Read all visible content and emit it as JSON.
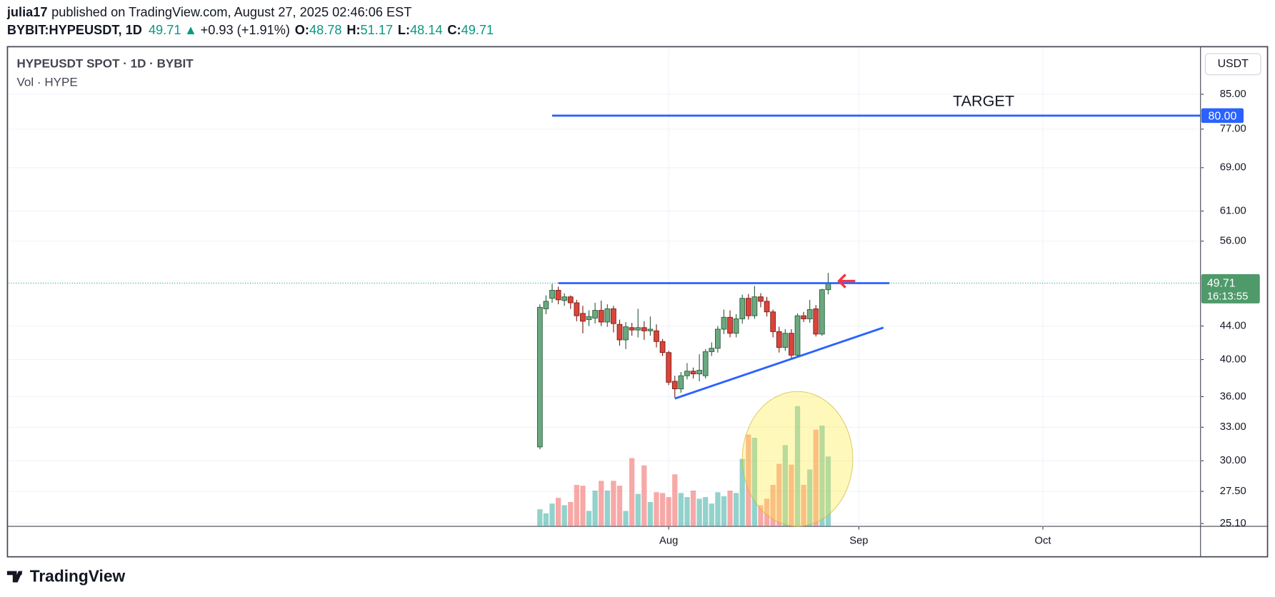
{
  "header": {
    "author": "julia17",
    "published": "published on TradingView.com, August 27, 2025 02:46:06 EST",
    "symbol": "BYBIT:HYPEUSDT, 1D",
    "change_arrow": "▲",
    "change": "+0.93 (+1.91%)",
    "o_label": "O:",
    "h_label": "H:",
    "l_label": "L:",
    "c_label": "C:"
  },
  "footer": {
    "brand": "TradingView"
  },
  "chart_data": {
    "type": "candlestick",
    "title": "HYPEUSDT SPOT · 1D · BYBIT",
    "volume_label": "Vol · HYPE",
    "currency": "USDT",
    "countdown": "16:13:55",
    "log_scale": true,
    "grid": true,
    "up_color": "#6aa97f",
    "down_color": "#d9453b",
    "open": [
      31.2,
      46.2,
      47.6,
      48.7,
      47.3,
      47.8,
      47.0,
      45.6,
      44.8,
      45.0,
      46.0,
      44.5,
      46.2,
      44.2,
      42.3,
      43.8,
      43.5,
      43.8,
      43.4,
      43.4,
      42.1,
      40.8,
      37.6,
      36.8,
      38.2,
      38.7,
      38.4,
      38.2,
      40.9,
      41.3,
      43.6,
      45.1,
      43.1,
      44.9,
      47.6,
      45.3,
      47.8,
      47.2,
      45.8,
      43.3,
      41.4,
      43.1,
      40.5,
      45.3,
      44.9,
      46.2,
      43.0,
      48.78
    ],
    "high": [
      46.8,
      48.0,
      49.6,
      49.2,
      48.3,
      48.0,
      47.4,
      46.6,
      46.0,
      47.0,
      47.3,
      46.8,
      46.6,
      44.8,
      44.5,
      44.4,
      46.2,
      44.6,
      45.2,
      44.2,
      42.4,
      41.0,
      38.2,
      38.6,
      39.6,
      39.1,
      40.6,
      41.2,
      42.0,
      44.0,
      46.1,
      46.0,
      45.5,
      48.1,
      48.2,
      49.3,
      48.3,
      47.8,
      46.1,
      43.9,
      43.6,
      43.6,
      45.6,
      45.8,
      47.4,
      46.7,
      48.9,
      51.17
    ],
    "low": [
      31.0,
      45.5,
      47.0,
      46.8,
      46.6,
      46.2,
      44.6,
      43.1,
      44.0,
      44.3,
      44.0,
      43.9,
      43.2,
      41.6,
      41.2,
      42.8,
      42.6,
      42.3,
      42.8,
      41.4,
      40.4,
      37.2,
      35.9,
      36.4,
      37.8,
      37.9,
      37.6,
      37.9,
      40.4,
      40.8,
      43.0,
      42.6,
      42.6,
      44.3,
      44.8,
      44.9,
      46.4,
      45.2,
      42.6,
      40.8,
      41.0,
      40.1,
      40.2,
      44.5,
      44.4,
      42.7,
      42.8,
      48.14
    ],
    "close": [
      46.4,
      47.2,
      48.7,
      47.4,
      47.8,
      47.0,
      45.3,
      44.6,
      45.2,
      46.0,
      44.5,
      46.2,
      44.3,
      42.3,
      43.9,
      43.5,
      43.8,
      43.4,
      43.6,
      42.1,
      40.8,
      37.5,
      36.8,
      38.2,
      38.7,
      38.4,
      38.8,
      40.9,
      41.3,
      43.6,
      45.1,
      43.1,
      44.9,
      47.6,
      45.3,
      47.8,
      47.2,
      45.8,
      43.3,
      41.4,
      43.1,
      40.5,
      45.3,
      44.9,
      46.1,
      43.0,
      48.78,
      49.71
    ],
    "volume": [
      21,
      16,
      28,
      35,
      26,
      30,
      51,
      50,
      19,
      44,
      56,
      44,
      56,
      50,
      19,
      84,
      40,
      75,
      30,
      42,
      41,
      36,
      64,
      41,
      36,
      44,
      34,
      36,
      28,
      42,
      37,
      44,
      41,
      83,
      113,
      109,
      26,
      34,
      51,
      77,
      100,
      76,
      148,
      51,
      70,
      119,
      124,
      86
    ],
    "xlim": [
      -86.6,
      107.7
    ],
    "xticks": [
      {
        "value": 21,
        "label": "Aug"
      },
      {
        "value": 52,
        "label": "Sep"
      },
      {
        "value": 82,
        "label": "Oct"
      }
    ],
    "ylim": [
      24.9,
      95.2
    ],
    "yticks": [
      {
        "value": 25.1,
        "label": "25.10"
      },
      {
        "value": 27.5,
        "label": "27.50"
      },
      {
        "value": 30,
        "label": "30.00"
      },
      {
        "value": 33,
        "label": "33.00"
      },
      {
        "value": 36,
        "label": "36.00"
      },
      {
        "value": 40,
        "label": "40.00"
      },
      {
        "value": 44,
        "label": "44.00"
      },
      {
        "value": 56,
        "label": "56.00"
      },
      {
        "value": 61,
        "label": "61.00"
      },
      {
        "value": 69,
        "label": "69.00"
      },
      {
        "value": 77,
        "label": "77.00"
      },
      {
        "value": 85,
        "label": "85.00"
      }
    ],
    "target": {
      "text": "TARGET",
      "value": 80,
      "value_label": "80.00",
      "start": 2,
      "color": "#2962ff"
    },
    "resistance": {
      "value": 49.7,
      "start": 3,
      "end": 57,
      "color": "#2962ff"
    },
    "support": {
      "start": [
        22,
        35.8
      ],
      "end": [
        56,
        43.8
      ],
      "color": "#2962ff"
    }
  }
}
